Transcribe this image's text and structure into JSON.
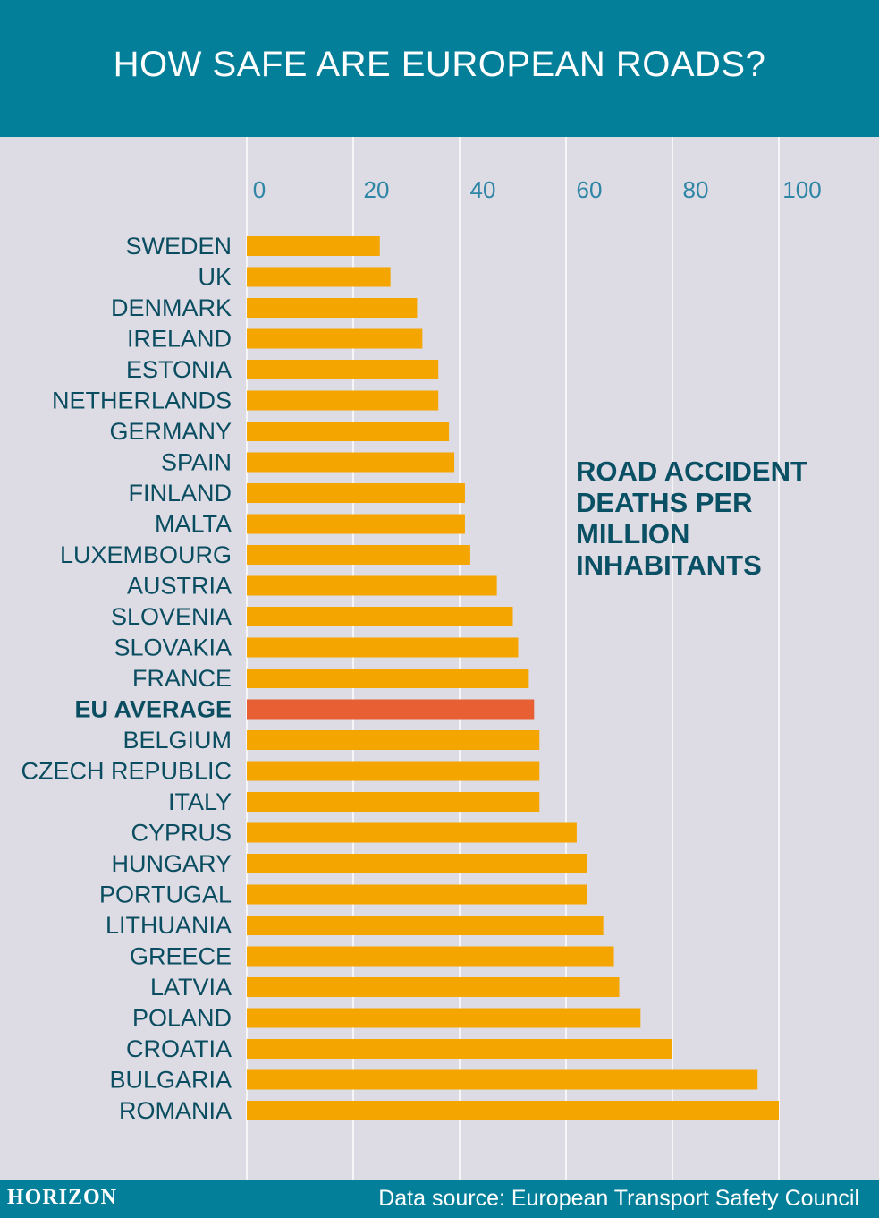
{
  "header": {
    "title": "HOW SAFE ARE EUROPEAN ROADS?"
  },
  "footer": {
    "logo": "HORIZON",
    "source": "Data source: European Transport Safety Council"
  },
  "colors": {
    "header_bg": "#047f99",
    "background": "#dddbe3",
    "bar": "#f5a500",
    "highlight_bar": "#e85f34",
    "label_text": "#0a4d61",
    "tick_text": "#2e86a6",
    "gridline": "#ffffff"
  },
  "chart_data": {
    "type": "bar",
    "orientation": "horizontal",
    "title": "ROAD ACCIDENT\nDEATHS PER\nMILLION\nINHABITANTS",
    "xlim": [
      0,
      100
    ],
    "xticks": [
      0,
      20,
      40,
      60,
      80,
      100
    ],
    "x_axis_position": "top",
    "grid": true,
    "highlight_category": "EU AVERAGE",
    "categories": [
      "SWEDEN",
      "UK",
      "DENMARK",
      "IRELAND",
      "ESTONIA",
      "NETHERLANDS",
      "GERMANY",
      "SPAIN",
      "FINLAND",
      "MALTA",
      "LUXEMBOURG",
      "AUSTRIA",
      "SLOVENIA",
      "SLOVAKIA",
      "FRANCE",
      "EU AVERAGE",
      "BELGIUM",
      "CZECH REPUBLIC",
      "ITALY",
      "CYPRUS",
      "HUNGARY",
      "PORTUGAL",
      "LITHUANIA",
      "GREECE",
      "LATVIA",
      "POLAND",
      "CROATIA",
      "BULGARIA",
      "ROMANIA"
    ],
    "values": [
      25,
      27,
      32,
      33,
      36,
      36,
      38,
      39,
      41,
      41,
      42,
      47,
      50,
      51,
      53,
      54,
      55,
      55,
      55,
      62,
      64,
      64,
      67,
      69,
      70,
      74,
      80,
      96,
      100
    ]
  }
}
